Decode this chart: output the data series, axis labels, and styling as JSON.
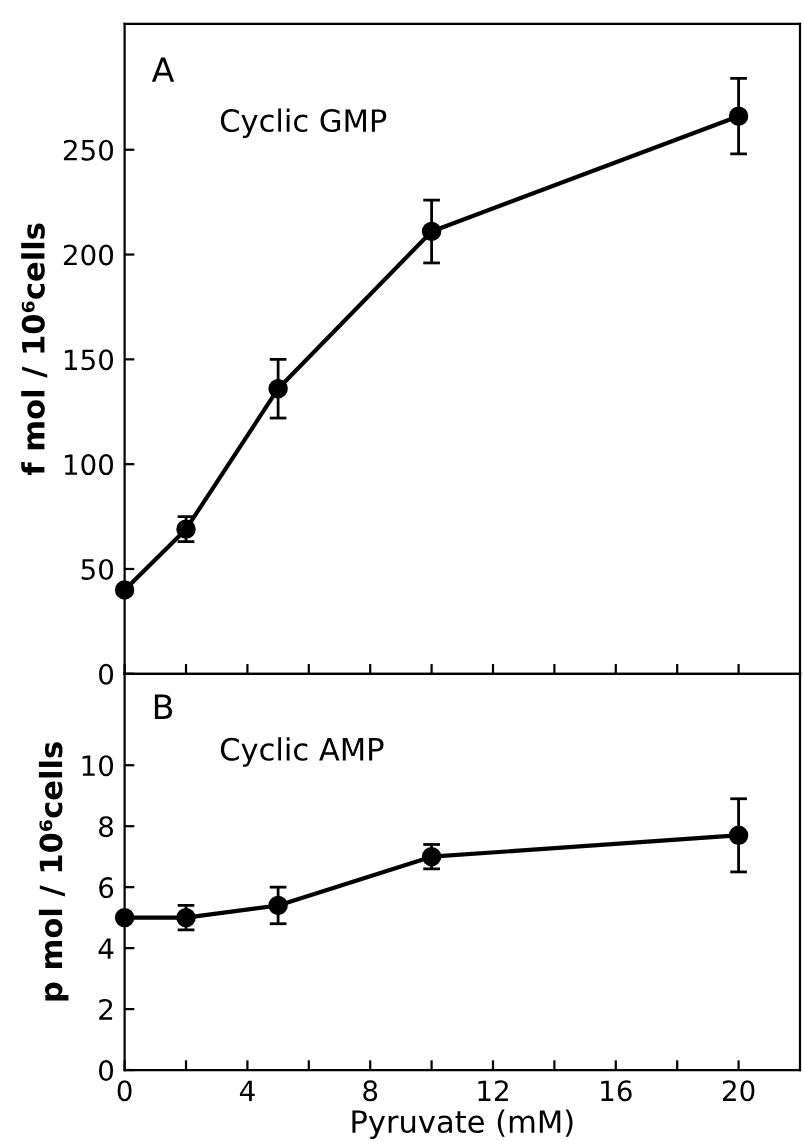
{
  "chart_data": [
    {
      "type": "line",
      "annotations": [
        "A",
        "Cyclic GMP"
      ],
      "ylabel": "f mol / 10⁶cells",
      "x": [
        0,
        2,
        5,
        10,
        20
      ],
      "series": [
        {
          "color": "#000000",
          "values": [
            40,
            69,
            136,
            211,
            266
          ],
          "errors": [
            null,
            6,
            14,
            15,
            18
          ]
        }
      ],
      "marker": "circle",
      "line_style": "solid",
      "xlim": [
        0,
        22
      ],
      "ylim": [
        0,
        310
      ],
      "xticks": [
        0,
        {
          "value": 2,
          "label": null
        },
        4,
        {
          "value": 6,
          "label": null
        },
        8,
        {
          "value": 10,
          "label": null
        },
        12,
        {
          "value": 14,
          "label": null
        },
        16,
        {
          "value": 18,
          "label": null
        },
        20
      ],
      "yticks": [
        0,
        50,
        100,
        150,
        200,
        250
      ],
      "tick_labels": "y",
      "grid": false,
      "legend": false
    },
    {
      "type": "line",
      "annotations": [
        "B",
        "Cyclic AMP"
      ],
      "ylabel": "p mol / 10⁶cells",
      "xlabel": "Pyruvate (mM)",
      "x": [
        0,
        2,
        5,
        10,
        20
      ],
      "series": [
        {
          "color": "#000000",
          "values": [
            5,
            5,
            5.4,
            7.0,
            7.7
          ],
          "errors": [
            null,
            0.4,
            0.6,
            0.4,
            1.2
          ]
        }
      ],
      "marker": "circle",
      "line_style": "solid",
      "xlim": [
        0,
        22
      ],
      "ylim": [
        0,
        13
      ],
      "xticks": [
        0,
        {
          "value": 2,
          "label": null
        },
        4,
        {
          "value": 6,
          "label": null
        },
        8,
        {
          "value": 10,
          "label": null
        },
        12,
        {
          "value": 14,
          "label": null
        },
        16,
        {
          "value": 18,
          "label": null
        },
        20
      ],
      "yticks": [
        0,
        2,
        4,
        6,
        8,
        10
      ],
      "grid": false,
      "legend": false
    }
  ]
}
